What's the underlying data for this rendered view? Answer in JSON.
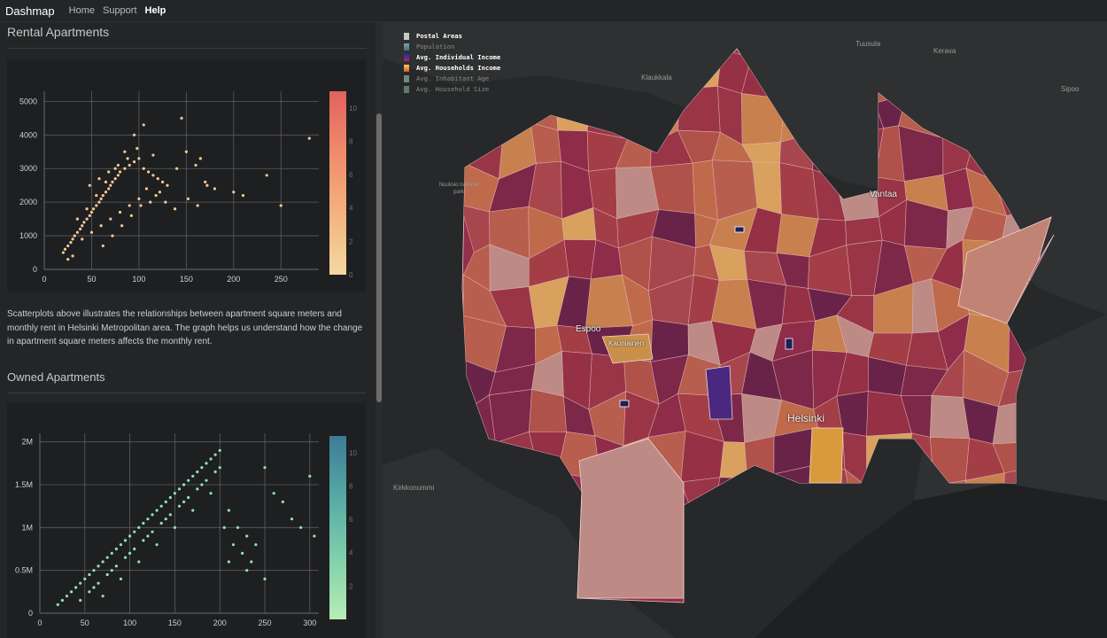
{
  "nav": {
    "brand": "Dashmap",
    "links": [
      "Home",
      "Support",
      "Help"
    ]
  },
  "rental": {
    "title": "Rental Apartments",
    "description": "Scatterplots above illustrates the relationships between apartment square meters and monthly rent in Helsinki Metropolitan area. The graph helps us understand how the change in apartment square meters affects the monthly rent."
  },
  "owned": {
    "title": "Owned Apartments"
  },
  "chart_data": [
    {
      "type": "scatter",
      "title": "",
      "xlabel": "",
      "ylabel": "",
      "xlim": [
        0,
        290
      ],
      "ylim": [
        0,
        5300
      ],
      "xticks": [
        0,
        50,
        100,
        150,
        200,
        250
      ],
      "yticks": [
        0,
        1000,
        2000,
        3000,
        4000,
        5000
      ],
      "xtick_labels": [
        "0",
        "50",
        "100",
        "150",
        "200",
        "250"
      ],
      "ytick_labels": [
        "0",
        "1000",
        "2000",
        "3000",
        "4000",
        "5000"
      ],
      "colorbar": {
        "min": 0,
        "max": 11,
        "ticks": [
          "0",
          "2",
          "4",
          "6",
          "8",
          "10"
        ],
        "colors": [
          "#f3d9a1",
          "#f5b27d",
          "#ef8b6a",
          "#e2625e"
        ]
      },
      "point_color": "#f6c890",
      "grid": true,
      "series": [
        {
          "x": [
            20,
            22,
            25,
            28,
            30,
            32,
            35,
            38,
            40,
            42,
            45,
            48,
            50,
            52,
            55,
            58,
            60,
            62,
            65,
            68,
            70,
            72,
            75,
            78,
            80,
            85,
            90,
            95,
            100,
            105,
            110,
            115,
            120,
            125,
            130,
            140,
            150,
            160,
            170,
            180,
            200,
            210,
            235,
            250,
            280,
            35,
            45,
            55,
            65,
            75,
            85,
            95,
            105,
            115,
            40,
            50,
            60,
            70,
            80,
            90,
            100,
            48,
            58,
            68,
            78,
            88,
            98,
            108,
            118,
            128,
            138,
            30,
            25,
            62,
            72,
            82,
            92,
            102,
            112,
            122,
            152,
            162,
            172,
            145,
            165
          ],
          "y": [
            500,
            600,
            700,
            800,
            900,
            1000,
            1100,
            1200,
            1300,
            1400,
            1500,
            1600,
            1700,
            1800,
            1900,
            2000,
            2100,
            2200,
            2300,
            2400,
            2500,
            2600,
            2700,
            2800,
            2900,
            3000,
            3100,
            3200,
            3300,
            3000,
            2900,
            2800,
            2700,
            2600,
            2500,
            3000,
            3500,
            3100,
            2600,
            2400,
            2300,
            2200,
            2800,
            1900,
            3900,
            1500,
            1800,
            2200,
            2600,
            3000,
            3500,
            4000,
            4300,
            3400,
            900,
            1100,
            1300,
            1500,
            1700,
            1900,
            2100,
            2500,
            2700,
            2900,
            3100,
            3300,
            3600,
            2400,
            2200,
            2000,
            1800,
            400,
            300,
            700,
            1000,
            1300,
            1600,
            1900,
            2000,
            2300,
            2100,
            1900,
            2500,
            4500,
            3300
          ]
        }
      ]
    },
    {
      "type": "scatter",
      "title": "",
      "xlabel": "",
      "ylabel": "",
      "xlim": [
        0,
        310
      ],
      "ylim": [
        0,
        2100000
      ],
      "xticks": [
        0,
        50,
        100,
        150,
        200,
        250,
        300
      ],
      "yticks": [
        0,
        500000,
        1000000,
        1500000,
        2000000
      ],
      "xtick_labels": [
        "0",
        "50",
        "100",
        "150",
        "200",
        "250",
        "300"
      ],
      "ytick_labels": [
        "0",
        "0.5M",
        "1M",
        "1.5M",
        "2M"
      ],
      "colorbar": {
        "min": 0,
        "max": 11,
        "ticks": [
          "2",
          "4",
          "6",
          "8",
          "10"
        ],
        "colors": [
          "#b8ecb5",
          "#7fd0aa",
          "#56a9a5",
          "#3d7b97"
        ]
      },
      "point_color": "#95e0b7",
      "grid": true,
      "series": [
        {
          "x": [
            20,
            25,
            30,
            35,
            40,
            45,
            50,
            55,
            60,
            65,
            70,
            75,
            80,
            85,
            90,
            95,
            100,
            105,
            110,
            115,
            120,
            125,
            130,
            135,
            140,
            145,
            150,
            155,
            160,
            165,
            170,
            175,
            180,
            185,
            190,
            195,
            200,
            210,
            220,
            230,
            240,
            250,
            260,
            270,
            280,
            290,
            300,
            305,
            60,
            80,
            100,
            120,
            140,
            160,
            180,
            200,
            70,
            90,
            110,
            130,
            150,
            170,
            190,
            210,
            230,
            250,
            45,
            55,
            65,
            75,
            85,
            95,
            105,
            115,
            125,
            135,
            145,
            155,
            165,
            175,
            185,
            195,
            205,
            215,
            225,
            235
          ],
          "y": [
            100000,
            150000,
            200000,
            250000,
            300000,
            350000,
            400000,
            450000,
            500000,
            550000,
            600000,
            650000,
            700000,
            750000,
            800000,
            850000,
            900000,
            950000,
            1000000,
            1050000,
            1100000,
            1150000,
            1200000,
            1250000,
            1300000,
            1350000,
            1400000,
            1450000,
            1500000,
            1550000,
            1600000,
            1650000,
            1700000,
            1750000,
            1800000,
            1850000,
            1900000,
            1200000,
            1000000,
            900000,
            800000,
            1700000,
            1400000,
            1300000,
            1100000,
            1000000,
            1600000,
            900000,
            300000,
            500000,
            700000,
            900000,
            1100000,
            1300000,
            1500000,
            1700000,
            200000,
            400000,
            600000,
            800000,
            1000000,
            1200000,
            1400000,
            600000,
            500000,
            400000,
            150000,
            250000,
            350000,
            450000,
            550000,
            650000,
            750000,
            850000,
            950000,
            1050000,
            1150000,
            1250000,
            1350000,
            1450000,
            1550000,
            1650000,
            1000000,
            800000,
            700000,
            600000
          ]
        }
      ]
    }
  ],
  "map": {
    "legend": [
      {
        "label": "Postal Areas",
        "color": "#c8c8c8",
        "active": true
      },
      {
        "label": "Population",
        "color": "#6a8c9c",
        "active": false
      },
      {
        "label": "Avg. Individual Income",
        "color": "#5a2fb8",
        "active": true
      },
      {
        "label": "Avg. Households Income",
        "color": "#f29a3a",
        "active": true
      },
      {
        "label": "Avg. Inhabitant Age",
        "color": "#6c8c7c",
        "active": false
      },
      {
        "label": "Avg. Household Size",
        "color": "#5c7c6c",
        "active": false
      }
    ],
    "places": {
      "tuusula": "Tuusula",
      "kerava": "Kerava",
      "klaukkala": "Klaukkala",
      "sipoo": "Sipoo",
      "nuuksio": "Nuuksio national park",
      "vantaa": "Vantaa",
      "espoo": "Espoo",
      "kauniainen": "Kauniainen",
      "helsinki": "Helsinki",
      "kirkkonummi": "Kirkkonummi"
    },
    "palette": [
      "#8e2c4a",
      "#9a3548",
      "#a43e46",
      "#7d2848",
      "#b0514a",
      "#c06a4c",
      "#6a2348",
      "#a8464e",
      "#b85e4e",
      "#963044",
      "#c8804e",
      "#d9a05e",
      "#bd8a86"
    ]
  }
}
